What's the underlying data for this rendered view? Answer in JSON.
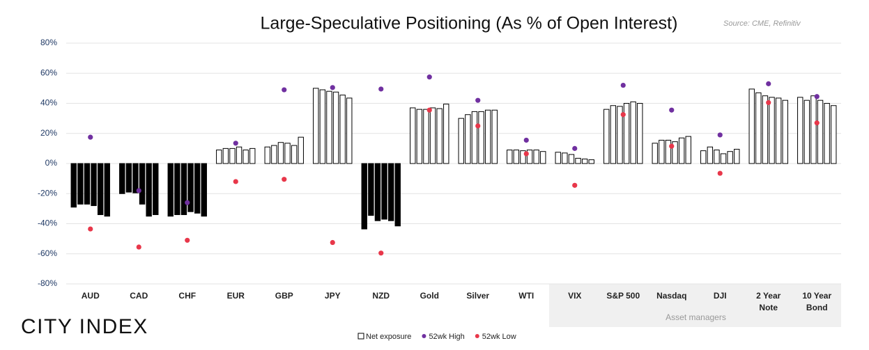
{
  "chart_data": {
    "type": "bar",
    "title": "Large-Speculative Positioning (As % of Open Interest)",
    "source": "Source: CME, Refinitiv",
    "brand": "CITY INDEX",
    "categories": [
      "AUD",
      "CAD",
      "CHF",
      "EUR",
      "GBP",
      "JPY",
      "NZD",
      "Gold",
      "Silver",
      "WTI",
      "VIX",
      "S&P 500",
      "Nasdaq",
      "DJI",
      "2 Year Note",
      "10 Year Bond"
    ],
    "series": [
      {
        "name": "Net exposure",
        "color": "#ffffff",
        "negative_color": "#000000",
        "edge_color": "#000000",
        "values": [
          [
            -29,
            -27,
            -27,
            -28,
            -34,
            -35
          ],
          [
            -20,
            -19,
            -19.5,
            -27,
            -35,
            -34
          ],
          [
            -35,
            -34,
            -34,
            -32,
            -33,
            -35
          ],
          [
            9,
            10,
            10,
            11,
            9,
            10
          ],
          [
            11,
            12,
            14,
            13.5,
            12,
            17.5
          ],
          [
            50,
            49,
            48,
            47.5,
            45.5,
            43.5
          ],
          [
            -43.5,
            -34.5,
            -38,
            -37,
            -38,
            -41.5
          ],
          [
            37,
            36,
            36,
            37,
            36.5,
            39.5
          ],
          [
            30,
            32.5,
            34.5,
            34.5,
            35.5,
            35.5
          ],
          [
            9,
            9,
            8.5,
            9,
            9,
            8
          ],
          [
            7.5,
            7,
            6,
            3.5,
            3,
            2.5
          ],
          [
            36,
            38.5,
            38,
            40,
            41,
            40
          ],
          [
            13.5,
            15.5,
            15.5,
            14.5,
            17,
            18
          ],
          [
            8.5,
            11,
            9,
            6.5,
            8,
            9.5
          ],
          [
            49.5,
            47,
            45,
            44,
            43.5,
            42
          ],
          [
            44,
            42,
            45,
            42,
            40,
            38.5
          ]
        ]
      },
      {
        "name": "52wk High",
        "color": "#7030a0",
        "values": [
          17.5,
          -18,
          -26,
          13.5,
          49,
          50.5,
          49.5,
          57.5,
          42,
          15.5,
          10,
          52,
          35.5,
          19,
          53,
          44.5
        ]
      },
      {
        "name": "52wk Low",
        "color": "#e8374a",
        "values": [
          -43.5,
          -55.5,
          -51,
          -12,
          -10.5,
          -52.5,
          -59.5,
          35.5,
          25,
          6.5,
          -14.5,
          32.5,
          11.5,
          -6.5,
          40.5,
          27
        ]
      }
    ],
    "group": {
      "label": "Asset managers",
      "first": 10
    },
    "ylim": [
      -80,
      80
    ],
    "yticks": [
      {
        "value": -80,
        "label": "-80%"
      },
      {
        "value": -60,
        "label": "-60%"
      },
      {
        "value": -40,
        "label": "-40%"
      },
      {
        "value": -20,
        "label": "-20%"
      },
      {
        "value": 0,
        "label": "0%"
      },
      {
        "value": 20,
        "label": "20%"
      },
      {
        "value": 40,
        "label": "40%"
      },
      {
        "value": 60,
        "label": "60%"
      },
      {
        "value": 80,
        "label": "80%"
      }
    ],
    "grid": true
  }
}
